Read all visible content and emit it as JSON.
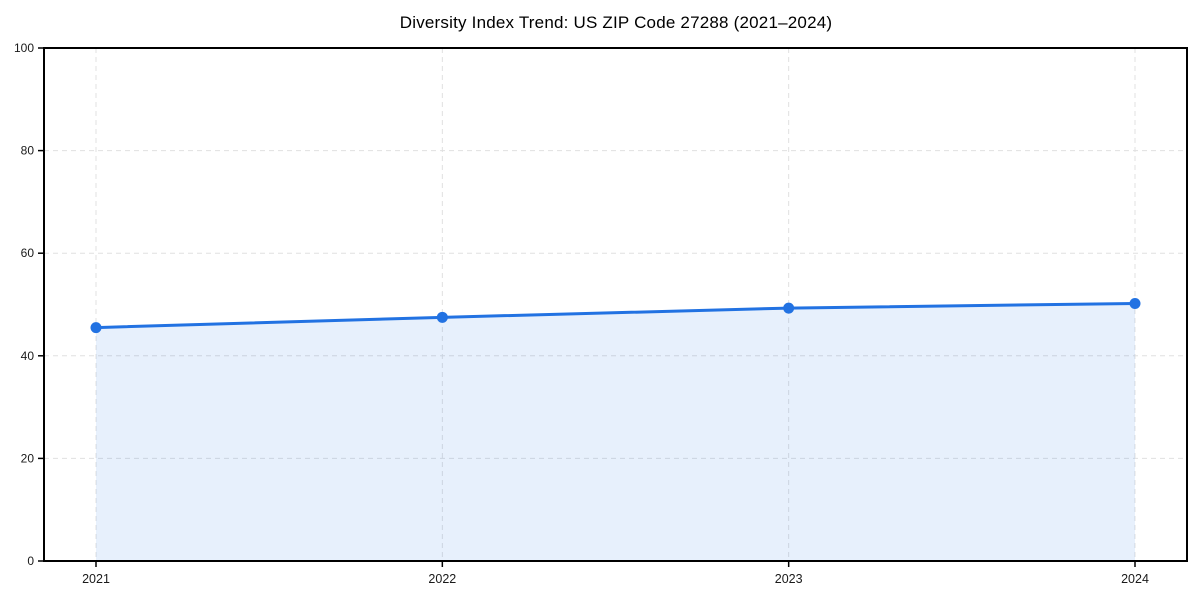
{
  "chart_data": {
    "type": "area",
    "title": "Diversity Index Trend: US ZIP Code 27288 (2021–2024)",
    "series_name": "Diversity Index",
    "x": [
      2021,
      2022,
      2023,
      2024
    ],
    "xtick_labels": [
      "2021",
      "2022",
      "2023",
      "2024"
    ],
    "values": [
      45.5,
      47.5,
      49.3,
      50.2
    ],
    "xlabel": "",
    "ylabel": "",
    "ylim": [
      0,
      100
    ],
    "yticks": [
      0,
      20,
      40,
      60,
      80,
      100
    ],
    "grid": "dashed-both-axes",
    "legend": "none",
    "colors": {
      "line": "#2272e2",
      "marker": "#2272e2",
      "fill": "rgba(34,114,226,0.11)",
      "grid": "#e0e0e0",
      "spine": "#000000",
      "tick_text": "#1a1a1a",
      "background": "#ffffff"
    }
  }
}
